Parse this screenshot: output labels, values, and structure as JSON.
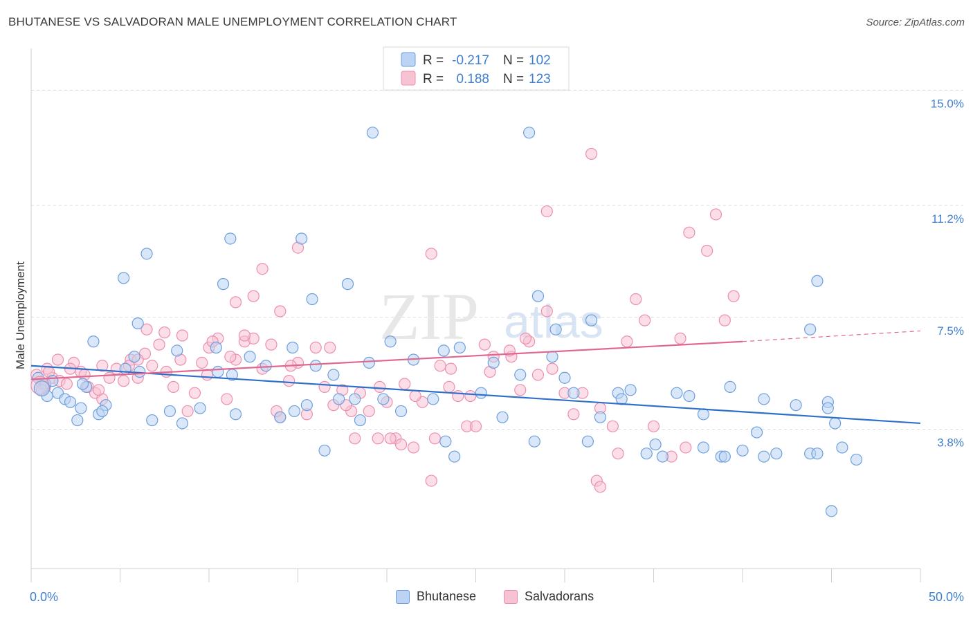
{
  "title": "BHUTANESE VS SALVADORAN MALE UNEMPLOYMENT CORRELATION CHART",
  "source": "Source: ZipAtlas.com",
  "colors": {
    "blue": "#6d9fde",
    "blue_fill": "#bcd3f3",
    "blue_line": "#2f6fcc",
    "pink": "#ec8fae",
    "pink_fill": "#f7c3d4",
    "pink_line": "#e06890",
    "axis_text": "#3f7fd0",
    "grid": "#d9d9d9"
  },
  "legend": {
    "r_label": "R =",
    "n_label": "N =",
    "rows": [
      {
        "series": "Bhutanese",
        "r": "-0.217",
        "n": "102"
      },
      {
        "series": "Salvadorans",
        "r": "0.188",
        "n": "123"
      }
    ]
  },
  "watermark": {
    "zip": "ZIP",
    "atlas": "atlas"
  },
  "chart_data": {
    "type": "scatter",
    "title": "BHUTANESE VS SALVADORAN MALE UNEMPLOYMENT CORRELATION CHART",
    "xlabel": "",
    "ylabel": "Male Unemployment",
    "xlim": [
      0,
      50
    ],
    "ylim": [
      -0.8,
      16.2
    ],
    "x_tick_labels": {
      "min": "0.0%",
      "max": "50.0%"
    },
    "y_ticks": [
      {
        "value": 3.8,
        "label": "3.8%"
      },
      {
        "value": 7.5,
        "label": "7.5%"
      },
      {
        "value": 11.2,
        "label": "11.2%"
      },
      {
        "value": 15.0,
        "label": "15.0%"
      }
    ],
    "grid": true,
    "legend_position": "top-center",
    "series": [
      {
        "name": "Bhutanese",
        "color": "#6d9fde",
        "trend": {
          "x": [
            0,
            50
          ],
          "y": [
            5.9,
            4.0
          ]
        },
        "points": [
          [
            0.4,
            5.5
          ],
          [
            0.8,
            5.3
          ],
          [
            0.6,
            5.1
          ],
          [
            0.9,
            4.9
          ],
          [
            1.2,
            5.4
          ],
          [
            1.5,
            5.0
          ],
          [
            1.9,
            4.8
          ],
          [
            2.2,
            4.7
          ],
          [
            2.8,
            4.5
          ],
          [
            3.1,
            5.2
          ],
          [
            3.8,
            4.3
          ],
          [
            4.2,
            4.6
          ],
          [
            4.0,
            4.4
          ],
          [
            3.5,
            6.7
          ],
          [
            5.3,
            5.8
          ],
          [
            5.8,
            6.2
          ],
          [
            6.1,
            5.7
          ],
          [
            6.8,
            4.1
          ],
          [
            7.8,
            4.4
          ],
          [
            8.5,
            4.0
          ],
          [
            9.5,
            4.5
          ],
          [
            10.5,
            5.7
          ],
          [
            11.3,
            5.6
          ],
          [
            11.5,
            4.3
          ],
          [
            12.3,
            6.2
          ],
          [
            13.2,
            5.9
          ],
          [
            14.0,
            4.2
          ],
          [
            14.8,
            4.4
          ],
          [
            15.5,
            4.6
          ],
          [
            16.5,
            3.1
          ],
          [
            17.3,
            4.8
          ],
          [
            16.0,
            5.9
          ],
          [
            17.0,
            5.6
          ],
          [
            18.2,
            4.8
          ],
          [
            19.8,
            4.8
          ],
          [
            20.2,
            6.7
          ],
          [
            20.8,
            4.4
          ],
          [
            21.5,
            6.1
          ],
          [
            19.0,
            6.0
          ],
          [
            18.5,
            4.1
          ],
          [
            22.6,
            4.8
          ],
          [
            23.3,
            3.4
          ],
          [
            23.8,
            2.9
          ],
          [
            24.1,
            6.5
          ],
          [
            25.3,
            5.0
          ],
          [
            26.0,
            6.0
          ],
          [
            26.5,
            4.2
          ],
          [
            28.3,
            3.4
          ],
          [
            29.3,
            6.2
          ],
          [
            30.5,
            5.0
          ],
          [
            31.3,
            3.4
          ],
          [
            32.0,
            4.2
          ],
          [
            33.0,
            5.0
          ],
          [
            33.7,
            5.1
          ],
          [
            33.2,
            4.8
          ],
          [
            34.6,
            3.0
          ],
          [
            35.5,
            2.9
          ],
          [
            35.1,
            3.3
          ],
          [
            36.3,
            5.0
          ],
          [
            37.0,
            4.9
          ],
          [
            37.8,
            4.3
          ],
          [
            38.8,
            2.9
          ],
          [
            39.3,
            5.2
          ],
          [
            40.0,
            3.1
          ],
          [
            40.8,
            3.7
          ],
          [
            41.2,
            4.8
          ],
          [
            41.9,
            3.0
          ],
          [
            43.0,
            4.6
          ],
          [
            43.8,
            3.0
          ],
          [
            44.2,
            3.0
          ],
          [
            44.8,
            4.7
          ],
          [
            45.6,
            3.2
          ],
          [
            46.4,
            2.8
          ],
          [
            44.2,
            8.7
          ],
          [
            43.8,
            7.1
          ],
          [
            44.8,
            4.5
          ],
          [
            45.2,
            4.0
          ],
          [
            39.0,
            2.9
          ],
          [
            37.8,
            3.2
          ],
          [
            41.2,
            2.9
          ],
          [
            2.6,
            4.1
          ],
          [
            2.9,
            5.3
          ],
          [
            6.0,
            7.3
          ],
          [
            6.5,
            9.6
          ],
          [
            5.2,
            8.8
          ],
          [
            8.2,
            6.4
          ],
          [
            10.4,
            6.5
          ],
          [
            10.8,
            8.6
          ],
          [
            11.2,
            10.1
          ],
          [
            14.7,
            6.5
          ],
          [
            15.2,
            10.1
          ],
          [
            15.8,
            8.1
          ],
          [
            17.8,
            8.6
          ],
          [
            19.2,
            13.6
          ],
          [
            23.2,
            6.4
          ],
          [
            27.5,
            5.6
          ],
          [
            28.0,
            13.6
          ],
          [
            28.5,
            8.2
          ],
          [
            29.5,
            7.1
          ],
          [
            31.5,
            7.4
          ],
          [
            30.0,
            5.5
          ],
          [
            45.0,
            1.1
          ]
        ]
      },
      {
        "name": "Salvadorans",
        "color": "#ec8fae",
        "trend": {
          "x": [
            0,
            40
          ],
          "y": [
            5.45,
            6.7
          ]
        },
        "trend_dashed": {
          "x": [
            40,
            50
          ],
          "y": [
            6.7,
            7.05
          ]
        },
        "points": [
          [
            0.3,
            5.6
          ],
          [
            0.6,
            5.3
          ],
          [
            0.9,
            5.8
          ],
          [
            1.2,
            5.5
          ],
          [
            1.6,
            5.4
          ],
          [
            2.0,
            5.3
          ],
          [
            2.4,
            6.0
          ],
          [
            2.8,
            5.7
          ],
          [
            3.2,
            5.2
          ],
          [
            3.6,
            5.0
          ],
          [
            4.0,
            5.9
          ],
          [
            4.4,
            5.5
          ],
          [
            4.8,
            5.8
          ],
          [
            5.2,
            5.4
          ],
          [
            5.6,
            6.1
          ],
          [
            6.0,
            5.5
          ],
          [
            6.4,
            6.3
          ],
          [
            6.8,
            5.9
          ],
          [
            7.2,
            6.6
          ],
          [
            7.6,
            5.7
          ],
          [
            8.0,
            5.2
          ],
          [
            8.4,
            6.1
          ],
          [
            8.8,
            4.4
          ],
          [
            9.2,
            5.0
          ],
          [
            9.6,
            6.0
          ],
          [
            10.0,
            6.5
          ],
          [
            10.5,
            6.8
          ],
          [
            11.0,
            4.8
          ],
          [
            11.5,
            6.1
          ],
          [
            12.0,
            6.7
          ],
          [
            12.5,
            6.8
          ],
          [
            13.0,
            5.8
          ],
          [
            13.5,
            6.6
          ],
          [
            14.0,
            4.2
          ],
          [
            14.5,
            5.4
          ],
          [
            15.0,
            6.0
          ],
          [
            15.5,
            4.3
          ],
          [
            16.0,
            6.5
          ],
          [
            16.5,
            5.2
          ],
          [
            17.0,
            4.6
          ],
          [
            17.5,
            5.1
          ],
          [
            18.0,
            4.4
          ],
          [
            18.5,
            5.0
          ],
          [
            19.0,
            4.4
          ],
          [
            19.5,
            3.5
          ],
          [
            20.0,
            4.7
          ],
          [
            20.5,
            3.5
          ],
          [
            21.0,
            5.3
          ],
          [
            21.5,
            3.2
          ],
          [
            22.0,
            4.7
          ],
          [
            22.5,
            2.1
          ],
          [
            23.0,
            5.9
          ],
          [
            23.5,
            5.2
          ],
          [
            24.0,
            4.9
          ],
          [
            24.5,
            3.9
          ],
          [
            25.0,
            3.9
          ],
          [
            25.5,
            6.6
          ],
          [
            26.0,
            6.2
          ],
          [
            27.0,
            6.2
          ],
          [
            27.5,
            5.1
          ],
          [
            28.0,
            6.7
          ],
          [
            28.5,
            5.6
          ],
          [
            29.0,
            7.7
          ],
          [
            30.0,
            5.0
          ],
          [
            31.0,
            5.0
          ],
          [
            32.0,
            4.5
          ],
          [
            33.0,
            3.0
          ],
          [
            33.5,
            6.7
          ],
          [
            34.0,
            8.1
          ],
          [
            35.0,
            3.9
          ],
          [
            36.0,
            2.9
          ],
          [
            36.5,
            6.8
          ],
          [
            37.0,
            10.3
          ],
          [
            38.0,
            9.7
          ],
          [
            38.5,
            10.9
          ],
          [
            39.0,
            7.4
          ],
          [
            39.5,
            8.2
          ],
          [
            31.5,
            12.9
          ],
          [
            29.0,
            11.0
          ],
          [
            22.5,
            9.6
          ],
          [
            15.0,
            9.8
          ],
          [
            13.0,
            9.1
          ],
          [
            12.5,
            8.2
          ],
          [
            14.0,
            7.7
          ],
          [
            11.5,
            8.0
          ],
          [
            8.5,
            6.9
          ],
          [
            7.5,
            7.0
          ],
          [
            6.5,
            7.1
          ],
          [
            6.0,
            6.1
          ],
          [
            5.5,
            5.9
          ],
          [
            4.0,
            4.8
          ],
          [
            3.8,
            5.1
          ],
          [
            1.5,
            6.1
          ],
          [
            0.8,
            5.2
          ],
          [
            1.0,
            5.7
          ],
          [
            2.2,
            5.8
          ],
          [
            3.0,
            5.6
          ],
          [
            9.9,
            5.6
          ],
          [
            10.2,
            6.7
          ],
          [
            11.2,
            6.2
          ],
          [
            12.0,
            6.9
          ],
          [
            13.8,
            4.4
          ],
          [
            14.6,
            5.9
          ],
          [
            16.8,
            6.5
          ],
          [
            17.7,
            4.6
          ],
          [
            18.2,
            3.5
          ],
          [
            19.6,
            5.2
          ],
          [
            20.2,
            3.5
          ],
          [
            20.8,
            3.3
          ],
          [
            21.6,
            4.9
          ],
          [
            22.7,
            3.5
          ],
          [
            23.6,
            5.8
          ],
          [
            24.7,
            4.9
          ],
          [
            25.8,
            5.7
          ],
          [
            26.9,
            6.4
          ],
          [
            27.8,
            6.8
          ],
          [
            29.3,
            5.8
          ],
          [
            30.5,
            4.3
          ],
          [
            31.8,
            2.1
          ],
          [
            32.7,
            3.9
          ],
          [
            34.5,
            7.4
          ],
          [
            36.8,
            3.2
          ],
          [
            32.0,
            1.9
          ]
        ]
      }
    ]
  },
  "bottom_legend": [
    "Bhutanese",
    "Salvadorans"
  ]
}
